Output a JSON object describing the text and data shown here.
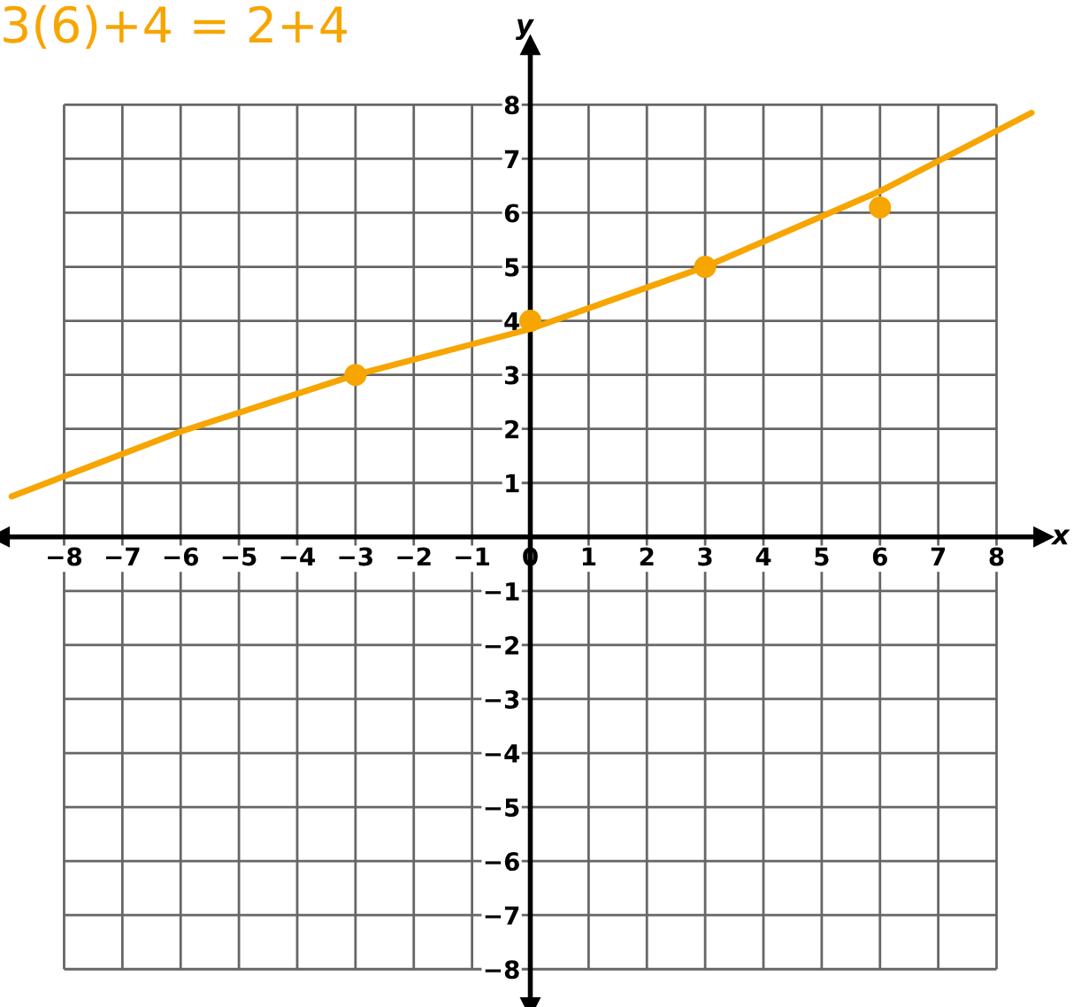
{
  "chart_data": {
    "type": "line",
    "xlabel": "x",
    "ylabel": "y",
    "annotations": [
      "3(6)+4 = 2+4"
    ],
    "xlim": [
      -9.1,
      8.8
    ],
    "ylim": [
      -8.7,
      9.1
    ],
    "xticks": [
      {
        "value": -8,
        "label": "−8"
      },
      {
        "value": -7,
        "label": "−7"
      },
      {
        "value": -6,
        "label": "−6"
      },
      {
        "value": -5,
        "label": "−5"
      },
      {
        "value": -4,
        "label": "−4"
      },
      {
        "value": -3,
        "label": "−3"
      },
      {
        "value": -2,
        "label": "−2"
      },
      {
        "value": -1,
        "label": "−1"
      },
      0,
      1,
      2,
      3,
      4,
      5,
      6,
      7,
      8
    ],
    "yticks": [
      {
        "value": -8,
        "label": "−8"
      },
      {
        "value": -7,
        "label": "−7"
      },
      {
        "value": -6,
        "label": "−6"
      },
      {
        "value": -5,
        "label": "−5"
      },
      {
        "value": -4,
        "label": "−4"
      },
      {
        "value": -3,
        "label": "−3"
      },
      {
        "value": -2,
        "label": "−2"
      },
      {
        "value": -1,
        "label": "−1"
      },
      {
        "value": 0,
        "label": null
      },
      1,
      2,
      3,
      4,
      5,
      6,
      7,
      8
    ],
    "grid": true,
    "series": [
      {
        "type": "line",
        "color": "#f7a500",
        "x": [
          -8.9,
          -6,
          -3,
          0,
          3,
          6,
          8.6
        ],
        "values": [
          0.75,
          1.95,
          3.0,
          3.85,
          5.0,
          6.4,
          7.85
        ]
      },
      {
        "type": "scatter",
        "color": "#f7a500",
        "marker": "circle",
        "x": [
          -3,
          0,
          3,
          6
        ],
        "values": [
          3,
          4,
          5,
          6.1
        ]
      }
    ]
  }
}
